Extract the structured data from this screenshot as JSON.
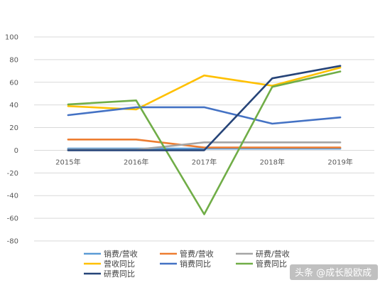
{
  "chart_data": {
    "type": "line",
    "title": "",
    "xlabel": "",
    "ylabel": "",
    "categories": [
      "2015年",
      "2016年",
      "2017年",
      "2018年",
      "2019年"
    ],
    "ylim": [
      -80,
      100
    ],
    "yticks": [
      100,
      80,
      60,
      40,
      20,
      0,
      -20,
      -40,
      -60,
      -80
    ],
    "grid": true,
    "legend_placement": "bottom",
    "series": [
      {
        "name": "销费/营收",
        "color": "#5B9BD5",
        "values": [
          1.5,
          1.5,
          1.5,
          1.5,
          1.5
        ]
      },
      {
        "name": "管费/营收",
        "color": "#ED7D31",
        "values": [
          9.5,
          9.5,
          2.5,
          2.5,
          2.5
        ]
      },
      {
        "name": "研费/营收",
        "color": "#A5A5A5",
        "values": [
          0.5,
          0.5,
          7,
          7,
          7
        ]
      },
      {
        "name": "营收同比",
        "color": "#FFC000",
        "values": [
          39,
          36,
          66,
          57,
          73
        ]
      },
      {
        "name": "销费同比",
        "color": "#4472C4",
        "values": [
          31,
          38,
          38,
          23.5,
          29
        ]
      },
      {
        "name": "管费同比",
        "color": "#70AD47",
        "values": [
          40.5,
          44,
          -56.5,
          56,
          69.5
        ]
      },
      {
        "name": "研费同比",
        "color": "#264478",
        "values": [
          0,
          0,
          0,
          63.5,
          74.5
        ]
      }
    ]
  },
  "watermark": {
    "text": "头条 @成长股欧成"
  }
}
